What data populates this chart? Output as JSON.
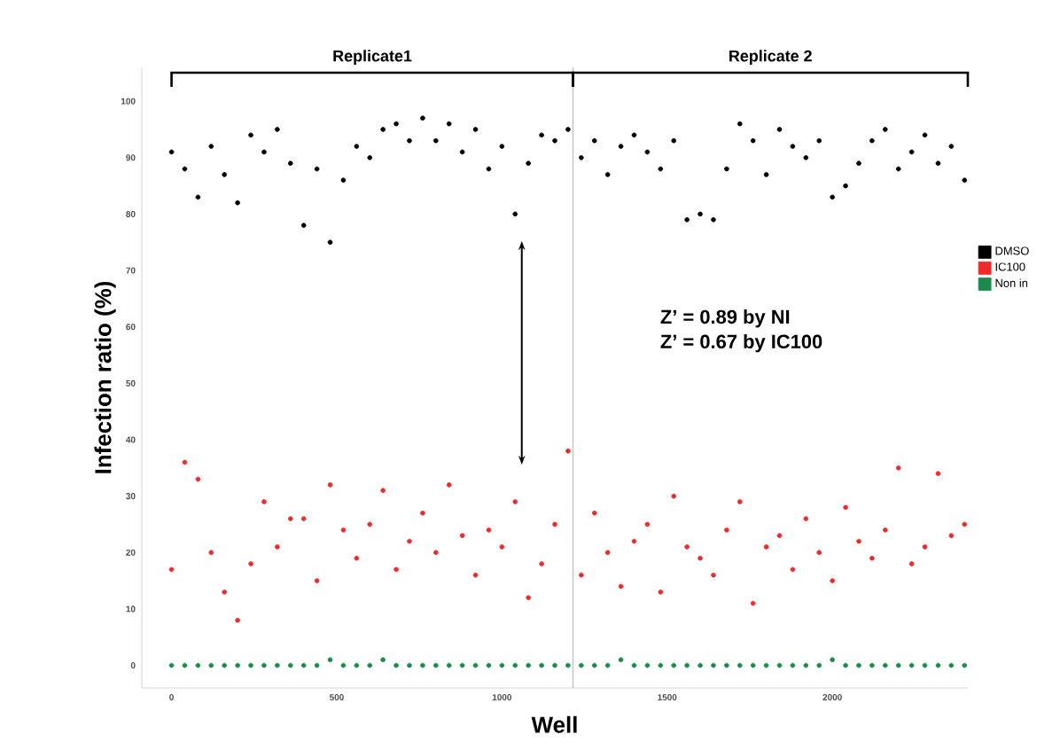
{
  "chart_data": {
    "type": "scatter",
    "xlabel": "Well",
    "ylabel": "Infection ratio (%)",
    "x": [
      0,
      40,
      80,
      120,
      160,
      200,
      240,
      280,
      320,
      360,
      400,
      440,
      480,
      520,
      560,
      600,
      640,
      680,
      720,
      760,
      800,
      840,
      880,
      920,
      960,
      1000,
      1040,
      1080,
      1120,
      1160,
      1200,
      1240,
      1280,
      1320,
      1360,
      1400,
      1440,
      1480,
      1520,
      1560,
      1600,
      1640,
      1680,
      1720,
      1760,
      1800,
      1840,
      1880,
      1920,
      1960,
      2000,
      2040,
      2080,
      2120,
      2160,
      2200,
      2240,
      2280,
      2320,
      2360,
      2400
    ],
    "series": [
      {
        "name": "DMSO",
        "color": "#000000",
        "values": [
          91,
          88,
          83,
          92,
          87,
          82,
          94,
          91,
          95,
          89,
          78,
          88,
          75,
          86,
          92,
          90,
          95,
          96,
          93,
          97,
          93,
          96,
          91,
          95,
          88,
          92,
          80,
          89,
          94,
          93,
          95,
          90,
          93,
          87,
          92,
          94,
          91,
          88,
          93,
          79,
          80,
          79,
          88,
          96,
          93,
          87,
          95,
          92,
          90,
          93,
          83,
          85,
          89,
          93,
          95,
          88,
          91,
          94,
          89,
          92,
          86
        ]
      },
      {
        "name": "IC100",
        "color": "#ee2a2a",
        "values": [
          17,
          36,
          33,
          20,
          13,
          8,
          18,
          29,
          21,
          26,
          26,
          15,
          32,
          24,
          19,
          25,
          31,
          17,
          22,
          27,
          20,
          32,
          23,
          16,
          24,
          21,
          29,
          12,
          18,
          25,
          38,
          16,
          27,
          20,
          14,
          22,
          25,
          13,
          30,
          21,
          19,
          16,
          24,
          29,
          11,
          21,
          23,
          17,
          26,
          20,
          15,
          28,
          22,
          19,
          24,
          35,
          18,
          21,
          34,
          23,
          25
        ]
      },
      {
        "name": "Non in",
        "color": "#1b8a4c",
        "values": [
          0,
          0,
          0,
          0,
          0,
          0,
          0,
          0,
          0,
          0,
          0,
          0,
          1,
          0,
          0,
          0,
          1,
          0,
          0,
          0,
          0,
          0,
          0,
          0,
          0,
          0,
          0,
          0,
          0,
          0,
          0,
          0,
          0,
          0,
          1,
          0,
          0,
          0,
          0,
          0,
          0,
          0,
          0,
          0,
          0,
          0,
          0,
          0,
          0,
          0,
          1,
          0,
          0,
          0,
          0,
          0,
          0,
          0,
          0,
          0,
          0
        ]
      }
    ],
    "xlim": [
      -90,
      2410
    ],
    "ylim": [
      -4,
      106
    ],
    "xticks": [
      0,
      500,
      1000,
      1500,
      2000
    ],
    "yticks": [
      0,
      10,
      20,
      30,
      40,
      50,
      60,
      70,
      80,
      90,
      100
    ],
    "ref_lines": [
      {
        "axis": "x",
        "value": 1215,
        "color": "#c8c8c8"
      }
    ],
    "annotations": [
      "Replicate1",
      "Replicate 2",
      "Z’ = 0.89 by NI",
      "Z’ = 0.67 by IC100"
    ],
    "legend": "right",
    "grid": false
  }
}
